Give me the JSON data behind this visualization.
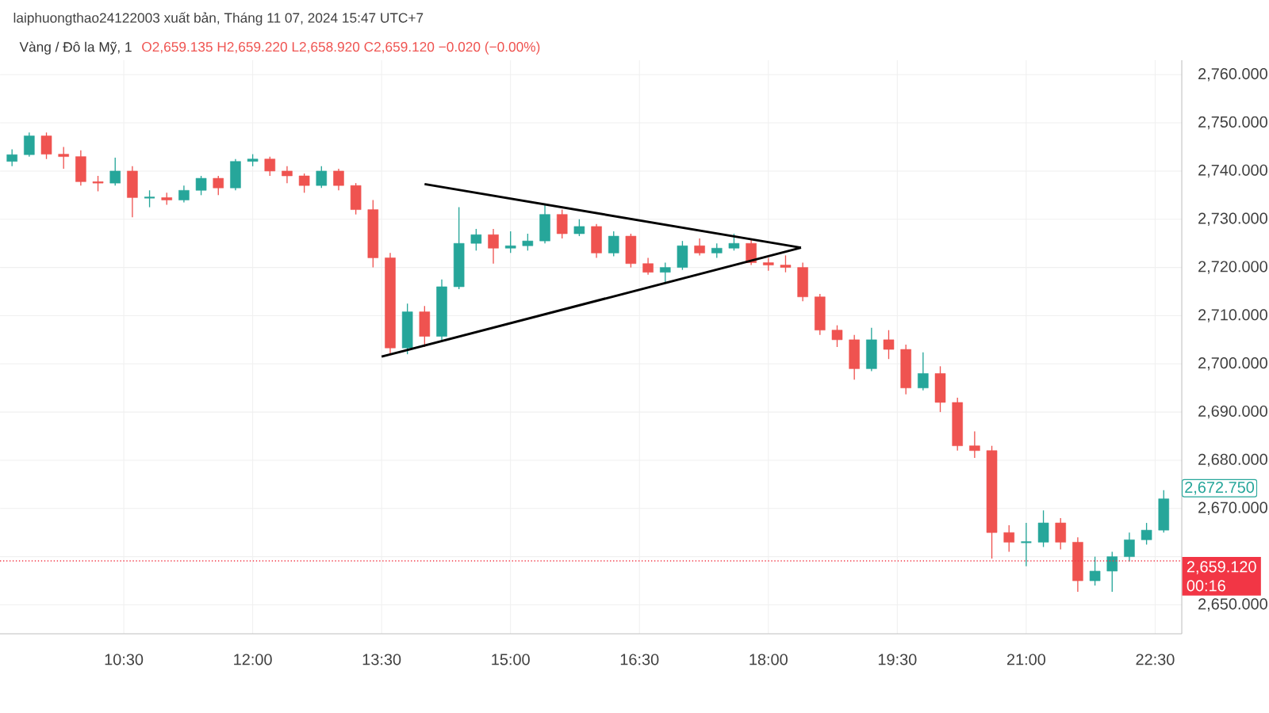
{
  "chart_data": {
    "type": "candlestick",
    "title": "Vàng / Đô la Mỹ, 1",
    "annotations": [
      "laiphuongthao24122003 xuất bản, Tháng 11 07, 2024 15:47 UTC+7",
      "O2,659.135 H2,659.220 L2,658.920 C2,659.120 −0.020 (−0.00%)",
      "2,672.750",
      "00:16"
    ],
    "x": [
      9.2,
      9.4,
      9.6,
      9.8,
      10.0,
      10.2,
      10.4,
      10.6,
      10.8,
      11.0,
      11.2,
      11.4,
      11.6,
      11.8,
      12.0,
      12.2,
      12.4,
      12.6,
      12.8,
      13.0,
      13.2,
      13.4,
      13.6,
      13.8,
      14.0,
      14.2,
      14.4,
      14.6,
      14.8,
      15.0,
      15.2,
      15.4,
      15.6,
      15.8,
      16.0,
      16.2,
      16.4,
      16.6,
      16.8,
      17.0,
      17.2,
      17.4,
      17.6,
      17.8,
      18.0,
      18.2,
      18.4,
      18.6,
      18.8,
      19.0,
      19.2,
      19.4,
      19.6,
      19.8,
      20.0,
      20.2,
      20.4,
      20.6,
      20.8,
      21.0,
      21.2,
      21.4,
      21.6,
      21.8,
      22.0,
      22.2,
      22.4,
      22.6
    ],
    "ohlc": [
      [
        2742.0,
        2744.5,
        2741.0,
        2743.4
      ],
      [
        2743.4,
        2748.0,
        2743.0,
        2747.3
      ],
      [
        2747.3,
        2748.0,
        2742.5,
        2743.5
      ],
      [
        2743.5,
        2745.0,
        2740.5,
        2743.0
      ],
      [
        2743.0,
        2744.3,
        2737.0,
        2737.8
      ],
      [
        2737.8,
        2739.0,
        2735.8,
        2737.5
      ],
      [
        2737.5,
        2742.8,
        2737.0,
        2740.0
      ],
      [
        2740.0,
        2741.0,
        2730.4,
        2734.5
      ],
      [
        2734.5,
        2736.0,
        2732.5,
        2734.5
      ],
      [
        2734.5,
        2735.5,
        2733.0,
        2734.0
      ],
      [
        2734.0,
        2737.0,
        2733.5,
        2736.0
      ],
      [
        2736.0,
        2739.0,
        2735.0,
        2738.5
      ],
      [
        2738.5,
        2739.0,
        2735.0,
        2736.5
      ],
      [
        2736.5,
        2742.5,
        2736.0,
        2742.0
      ],
      [
        2742.0,
        2743.5,
        2741.0,
        2742.5
      ],
      [
        2742.5,
        2743.0,
        2739.0,
        2740.0
      ],
      [
        2740.0,
        2741.0,
        2737.5,
        2739.0
      ],
      [
        2739.0,
        2739.5,
        2735.5,
        2737.0
      ],
      [
        2737.0,
        2741.0,
        2736.5,
        2740.0
      ],
      [
        2740.0,
        2740.5,
        2736.0,
        2737.0
      ],
      [
        2737.0,
        2737.5,
        2731.0,
        2732.0
      ],
      [
        2732.0,
        2734.0,
        2720.0,
        2722.0
      ],
      [
        2722.0,
        2723.0,
        2701.8,
        2703.3
      ],
      [
        2703.3,
        2712.5,
        2702.0,
        2710.8
      ],
      [
        2710.8,
        2712.0,
        2703.5,
        2705.7
      ],
      [
        2705.7,
        2717.5,
        2705.0,
        2716.0
      ],
      [
        2716.0,
        2732.5,
        2715.5,
        2725.0
      ],
      [
        2725.0,
        2728.0,
        2723.5,
        2726.8
      ],
      [
        2726.8,
        2728.0,
        2720.8,
        2724.0
      ],
      [
        2724.0,
        2727.5,
        2723.0,
        2724.5
      ],
      [
        2724.5,
        2727.0,
        2723.5,
        2725.5
      ],
      [
        2725.5,
        2733.0,
        2725.0,
        2731.0
      ],
      [
        2731.0,
        2732.0,
        2726.0,
        2727.0
      ],
      [
        2727.0,
        2730.0,
        2726.5,
        2728.5
      ],
      [
        2728.5,
        2729.0,
        2722.0,
        2723.0
      ],
      [
        2723.0,
        2727.5,
        2722.3,
        2726.5
      ],
      [
        2726.5,
        2727.0,
        2720.0,
        2720.8
      ],
      [
        2720.8,
        2722.0,
        2718.5,
        2719.0
      ],
      [
        2719.0,
        2721.0,
        2716.9,
        2720.0
      ],
      [
        2720.0,
        2725.5,
        2719.5,
        2724.5
      ],
      [
        2724.5,
        2726.0,
        2722.5,
        2723.0
      ],
      [
        2723.0,
        2725.0,
        2722.0,
        2724.0
      ],
      [
        2724.0,
        2727.0,
        2723.5,
        2725.0
      ],
      [
        2725.0,
        2726.0,
        2720.5,
        2721.0
      ],
      [
        2721.0,
        2722.0,
        2719.3,
        2720.5
      ],
      [
        2720.5,
        2722.5,
        2719.0,
        2720.0
      ],
      [
        2720.0,
        2721.0,
        2713.0,
        2713.9
      ],
      [
        2713.9,
        2714.5,
        2706.0,
        2707.0
      ],
      [
        2707.0,
        2708.0,
        2703.5,
        2705.0
      ],
      [
        2705.0,
        2706.0,
        2696.7,
        2699.0
      ],
      [
        2699.0,
        2707.5,
        2698.5,
        2705.0
      ],
      [
        2705.0,
        2707.0,
        2701.0,
        2703.0
      ],
      [
        2703.0,
        2704.0,
        2693.7,
        2695.0
      ],
      [
        2695.0,
        2702.4,
        2694.5,
        2698.0
      ],
      [
        2698.0,
        2699.5,
        2690.0,
        2692.0
      ],
      [
        2692.0,
        2693.0,
        2682.0,
        2683.0
      ],
      [
        2683.0,
        2686.0,
        2680.5,
        2682.0
      ],
      [
        2682.0,
        2683.0,
        2659.6,
        2665.0
      ],
      [
        2665.0,
        2666.5,
        2661.0,
        2663.0
      ],
      [
        2663.0,
        2667.0,
        2658.0,
        2663.0
      ],
      [
        2663.0,
        2669.6,
        2662.0,
        2667.0
      ],
      [
        2667.0,
        2668.0,
        2661.5,
        2663.0
      ],
      [
        2663.0,
        2664.0,
        2652.7,
        2655.0
      ],
      [
        2655.0,
        2660.0,
        2654.0,
        2657.0
      ],
      [
        2657.0,
        2661.0,
        2652.7,
        2660.0
      ],
      [
        2660.0,
        2665.0,
        2659.0,
        2663.5
      ],
      [
        2663.5,
        2667.0,
        2662.5,
        2665.5
      ],
      [
        2665.5,
        2673.8,
        2665.0,
        2672.0
      ]
    ],
    "series": [
      {
        "type": "line",
        "x": [
          14.0,
          18.38
        ],
        "values": [
          2737.3,
          2724.1
        ],
        "color": "#000000"
      },
      {
        "type": "line",
        "x": [
          13.5,
          18.38
        ],
        "values": [
          2701.5,
          2724.1
        ],
        "color": "#000000"
      }
    ],
    "ref_lines": [
      {
        "axis": "y",
        "value": 2659.12,
        "label": "2,659.120",
        "color": "#f23645",
        "line_style": "dotted"
      }
    ],
    "xlim": [
      9.06,
      22.81
    ],
    "xticks": [
      {
        "value": 10.5,
        "label": "10:30"
      },
      {
        "value": 12,
        "label": "12:00"
      },
      {
        "value": 13.5,
        "label": "13:30"
      },
      {
        "value": 15,
        "label": "15:00"
      },
      {
        "value": 16.5,
        "label": "16:30"
      },
      {
        "value": 18,
        "label": "18:00"
      },
      {
        "value": 19.5,
        "label": "19:30"
      },
      {
        "value": 21,
        "label": "21:00"
      },
      {
        "value": 22.5,
        "label": "22:30"
      }
    ],
    "ylim": [
      2644,
      2763
    ],
    "yticks": [
      {
        "value": 2650,
        "label": "2,650.000"
      },
      {
        "value": 2660,
        "label": null
      },
      {
        "value": 2670,
        "label": "2,670.000"
      },
      {
        "value": 2680,
        "label": "2,680.000"
      },
      {
        "value": 2690,
        "label": "2,690.000"
      },
      {
        "value": 2700,
        "label": "2,700.000"
      },
      {
        "value": 2710,
        "label": "2,710.000"
      },
      {
        "value": 2720,
        "label": "2,720.000"
      },
      {
        "value": 2730,
        "label": "2,730.000"
      },
      {
        "value": 2740,
        "label": "2,740.000"
      },
      {
        "value": 2750,
        "label": "2,750.000"
      },
      {
        "value": 2760,
        "label": "2,760.000"
      }
    ],
    "grid": true
  }
}
